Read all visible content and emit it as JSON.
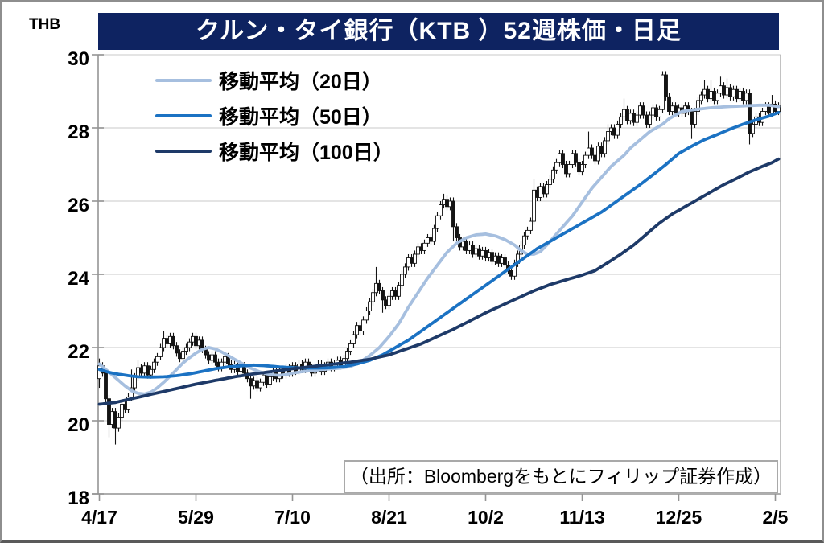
{
  "window": {
    "border_color": "#8e8e8e",
    "background": "#ffffff"
  },
  "header": {
    "title": "クルン・タイ銀行（KTB ）52週株価・日足",
    "background": "#0e2361",
    "text_color": "#ffffff"
  },
  "axes": {
    "unit_label": "THB",
    "y_ticks": [
      "30",
      "28",
      "26",
      "24",
      "22",
      "20",
      "18"
    ],
    "x_ticks": [
      "4/17",
      "5/29",
      "7/10",
      "8/21",
      "10/2",
      "11/13",
      "12/25",
      "2/5"
    ]
  },
  "legend": {
    "items": [
      {
        "label": "移動平均（20日）",
        "color": "#a6bfdf"
      },
      {
        "label": "移動平均（50日）",
        "color": "#1b72c3"
      },
      {
        "label": "移動平均（100日）",
        "color": "#1e3a68"
      }
    ]
  },
  "source_note": "（出所：Bloombergをもとにフィリップ証券作成）",
  "chart_data": {
    "type": "candlestick",
    "title": "クルン・タイ銀行（KTB ）52週株価・日足",
    "xlabel": "",
    "ylabel": "THB",
    "ylim": [
      18,
      30
    ],
    "y_step": 2,
    "grid": "horizontal",
    "legend_position": "top-left",
    "x_tick_labels": [
      "4/17",
      "5/29",
      "7/10",
      "8/21",
      "10/2",
      "11/13",
      "12/25",
      "2/5"
    ],
    "x_tick_days": [
      0,
      30,
      60,
      90,
      120,
      150,
      180,
      210
    ],
    "grid_color": "#dcdcdc",
    "axis_color": "#949494",
    "plot_edge_color": "#b3b3b3",
    "candle_up_color": "#ffffff",
    "candle_down_color": "#141414",
    "candle_outline": "#141414",
    "first_open": 21.15,
    "closes": [
      21.5,
      21.3,
      20.6,
      19.9,
      20.25,
      19.8,
      20.1,
      20.45,
      20.3,
      20.65,
      20.9,
      21.2,
      21.45,
      21.3,
      21.5,
      21.25,
      21.4,
      21.6,
      21.75,
      22.0,
      22.25,
      22.1,
      22.3,
      22.05,
      21.85,
      21.7,
      21.9,
      22.0,
      22.15,
      22.3,
      22.05,
      22.2,
      21.95,
      21.8,
      21.65,
      21.8,
      21.6,
      21.45,
      21.6,
      21.75,
      21.55,
      21.4,
      21.55,
      21.35,
      21.5,
      21.3,
      21.15,
      20.95,
      21.1,
      20.9,
      21.05,
      21.25,
      21.0,
      21.2,
      21.35,
      21.15,
      21.35,
      21.25,
      21.45,
      21.3,
      21.5,
      21.35,
      21.55,
      21.4,
      21.6,
      21.45,
      21.3,
      21.45,
      21.55,
      21.35,
      21.5,
      21.6,
      21.45,
      21.55,
      21.65,
      21.5,
      21.7,
      21.9,
      22.1,
      22.35,
      22.6,
      22.45,
      22.75,
      23.0,
      23.25,
      23.5,
      23.75,
      23.55,
      23.3,
      23.15,
      23.4,
      23.55,
      23.4,
      23.7,
      24.0,
      24.2,
      24.45,
      24.3,
      24.55,
      24.75,
      24.65,
      24.85,
      25.0,
      24.9,
      25.25,
      25.6,
      25.9,
      26.05,
      25.85,
      26.0,
      25.3,
      25.0,
      24.75,
      24.9,
      24.65,
      24.8,
      24.55,
      24.7,
      24.5,
      24.65,
      24.45,
      24.6,
      24.35,
      24.5,
      24.3,
      24.45,
      24.25,
      24.1,
      23.95,
      24.3,
      24.55,
      24.8,
      25.05,
      25.2,
      25.45,
      26.3,
      26.1,
      26.4,
      26.2,
      26.45,
      26.6,
      26.85,
      27.05,
      27.3,
      27.0,
      26.75,
      27.0,
      27.3,
      27.05,
      26.8,
      27.0,
      27.25,
      27.45,
      27.25,
      27.1,
      27.5,
      27.3,
      27.65,
      27.9,
      28.0,
      27.8,
      28.1,
      28.3,
      28.5,
      28.2,
      28.4,
      28.15,
      28.35,
      28.6,
      28.35,
      28.1,
      28.35,
      28.55,
      28.3,
      28.5,
      29.45,
      28.85,
      28.45,
      28.6,
      28.4,
      28.55,
      28.4,
      28.6,
      28.45,
      28.1,
      28.45,
      28.75,
      28.9,
      29.05,
      28.8,
      29.0,
      28.75,
      28.95,
      29.15,
      28.9,
      29.1,
      28.85,
      29.05,
      28.8,
      29.0,
      28.75,
      28.95,
      27.85,
      28.1,
      28.3,
      28.15,
      28.45,
      28.6,
      28.4,
      28.65,
      28.45,
      28.6
    ],
    "wick_overrides": {
      "0": {
        "l": 20.9,
        "h": 21.7
      },
      "2": {
        "l": 20.45
      },
      "3": {
        "l": 19.55
      },
      "5": {
        "l": 19.35
      },
      "10": {
        "h": 21.4
      },
      "12": {
        "h": 21.65
      },
      "20": {
        "h": 22.45
      },
      "29": {
        "h": 22.4
      },
      "47": {
        "l": 20.6
      },
      "86": {
        "h": 24.2
      },
      "88": {
        "l": 22.95
      },
      "107": {
        "h": 26.2
      },
      "110": {
        "l": 24.9
      },
      "128": {
        "l": 23.85
      },
      "135": {
        "h": 26.6
      },
      "152": {
        "h": 27.9
      },
      "158": {
        "h": 28.1
      },
      "163": {
        "h": 28.8
      },
      "175": {
        "h": 29.55
      },
      "184": {
        "l": 27.7
      },
      "188": {
        "h": 29.3
      },
      "190": {
        "h": 29.3
      },
      "193": {
        "h": 29.4
      },
      "195": {
        "h": 29.35
      },
      "202": {
        "l": 27.55
      },
      "209": {
        "h": 28.9
      }
    },
    "series": [
      {
        "name": "移動平均（20日）",
        "color": "#a6bfdf",
        "points": [
          [
            0,
            21.55
          ],
          [
            2,
            21.4
          ],
          [
            4,
            21.25
          ],
          [
            6,
            21.1
          ],
          [
            8,
            20.95
          ],
          [
            10,
            20.82
          ],
          [
            12,
            20.75
          ],
          [
            14,
            20.73
          ],
          [
            16,
            20.78
          ],
          [
            18,
            20.9
          ],
          [
            20,
            21.05
          ],
          [
            22,
            21.22
          ],
          [
            24,
            21.4
          ],
          [
            26,
            21.58
          ],
          [
            28,
            21.72
          ],
          [
            30,
            21.85
          ],
          [
            32,
            21.95
          ],
          [
            34,
            22.0
          ],
          [
            36,
            21.96
          ],
          [
            38,
            21.88
          ],
          [
            40,
            21.78
          ],
          [
            42,
            21.68
          ],
          [
            44,
            21.58
          ],
          [
            46,
            21.48
          ],
          [
            48,
            21.4
          ],
          [
            50,
            21.33
          ],
          [
            52,
            21.28
          ],
          [
            54,
            21.25
          ],
          [
            56,
            21.24
          ],
          [
            58,
            21.26
          ],
          [
            60,
            21.3
          ],
          [
            63,
            21.34
          ],
          [
            66,
            21.37
          ],
          [
            69,
            21.4
          ],
          [
            72,
            21.42
          ],
          [
            75,
            21.44
          ],
          [
            78,
            21.48
          ],
          [
            81,
            21.6
          ],
          [
            84,
            21.78
          ],
          [
            87,
            22.0
          ],
          [
            90,
            22.3
          ],
          [
            93,
            22.65
          ],
          [
            96,
            23.1
          ],
          [
            99,
            23.5
          ],
          [
            102,
            23.9
          ],
          [
            105,
            24.25
          ],
          [
            108,
            24.6
          ],
          [
            111,
            24.85
          ],
          [
            114,
            25.0
          ],
          [
            117,
            25.08
          ],
          [
            120,
            25.1
          ],
          [
            123,
            25.05
          ],
          [
            126,
            24.95
          ],
          [
            129,
            24.8
          ],
          [
            131,
            24.65
          ],
          [
            133,
            24.55
          ],
          [
            135,
            24.55
          ],
          [
            137,
            24.62
          ],
          [
            139,
            24.8
          ],
          [
            141,
            25.0
          ],
          [
            143,
            25.2
          ],
          [
            145,
            25.4
          ],
          [
            147,
            25.6
          ],
          [
            149,
            25.85
          ],
          [
            151,
            26.1
          ],
          [
            153,
            26.35
          ],
          [
            155,
            26.55
          ],
          [
            157,
            26.75
          ],
          [
            159,
            26.95
          ],
          [
            161,
            27.1
          ],
          [
            163,
            27.25
          ],
          [
            165,
            27.45
          ],
          [
            167,
            27.6
          ],
          [
            169,
            27.75
          ],
          [
            171,
            27.9
          ],
          [
            173,
            28.0
          ],
          [
            175,
            28.1
          ],
          [
            177,
            28.25
          ],
          [
            179,
            28.35
          ],
          [
            181,
            28.45
          ],
          [
            185,
            28.5
          ],
          [
            190,
            28.55
          ],
          [
            195,
            28.58
          ],
          [
            200,
            28.6
          ],
          [
            205,
            28.62
          ],
          [
            208,
            28.62
          ],
          [
            211,
            28.58
          ]
        ]
      },
      {
        "name": "移動平均（50日）",
        "color": "#1b72c3",
        "points": [
          [
            0,
            21.4
          ],
          [
            3,
            21.32
          ],
          [
            6,
            21.27
          ],
          [
            9,
            21.23
          ],
          [
            12,
            21.2
          ],
          [
            16,
            21.19
          ],
          [
            20,
            21.2
          ],
          [
            24,
            21.23
          ],
          [
            28,
            21.28
          ],
          [
            32,
            21.35
          ],
          [
            36,
            21.42
          ],
          [
            40,
            21.47
          ],
          [
            44,
            21.5
          ],
          [
            48,
            21.52
          ],
          [
            52,
            21.5
          ],
          [
            56,
            21.47
          ],
          [
            60,
            21.45
          ],
          [
            64,
            21.44
          ],
          [
            68,
            21.44
          ],
          [
            72,
            21.45
          ],
          [
            76,
            21.48
          ],
          [
            80,
            21.55
          ],
          [
            84,
            21.65
          ],
          [
            88,
            21.8
          ],
          [
            92,
            22.0
          ],
          [
            96,
            22.2
          ],
          [
            100,
            22.45
          ],
          [
            104,
            22.7
          ],
          [
            108,
            22.95
          ],
          [
            112,
            23.2
          ],
          [
            116,
            23.45
          ],
          [
            120,
            23.7
          ],
          [
            124,
            23.95
          ],
          [
            128,
            24.2
          ],
          [
            132,
            24.45
          ],
          [
            136,
            24.7
          ],
          [
            140,
            24.9
          ],
          [
            144,
            25.1
          ],
          [
            148,
            25.3
          ],
          [
            152,
            25.5
          ],
          [
            156,
            25.7
          ],
          [
            160,
            25.95
          ],
          [
            164,
            26.2
          ],
          [
            168,
            26.45
          ],
          [
            172,
            26.72
          ],
          [
            176,
            27.0
          ],
          [
            180,
            27.3
          ],
          [
            184,
            27.5
          ],
          [
            188,
            27.68
          ],
          [
            192,
            27.82
          ],
          [
            196,
            27.97
          ],
          [
            200,
            28.1
          ],
          [
            204,
            28.22
          ],
          [
            208,
            28.32
          ],
          [
            211,
            28.42
          ]
        ]
      },
      {
        "name": "移動平均（100日）",
        "color": "#1e3a68",
        "points": [
          [
            0,
            20.45
          ],
          [
            5,
            20.5
          ],
          [
            10,
            20.6
          ],
          [
            15,
            20.7
          ],
          [
            20,
            20.8
          ],
          [
            25,
            20.9
          ],
          [
            30,
            21.0
          ],
          [
            36,
            21.1
          ],
          [
            42,
            21.2
          ],
          [
            48,
            21.28
          ],
          [
            54,
            21.35
          ],
          [
            60,
            21.42
          ],
          [
            66,
            21.48
          ],
          [
            72,
            21.54
          ],
          [
            78,
            21.6
          ],
          [
            84,
            21.68
          ],
          [
            90,
            21.8
          ],
          [
            95,
            21.95
          ],
          [
            100,
            22.1
          ],
          [
            105,
            22.3
          ],
          [
            110,
            22.5
          ],
          [
            115,
            22.72
          ],
          [
            120,
            22.95
          ],
          [
            125,
            23.15
          ],
          [
            130,
            23.35
          ],
          [
            135,
            23.55
          ],
          [
            140,
            23.72
          ],
          [
            145,
            23.85
          ],
          [
            150,
            23.98
          ],
          [
            154,
            24.1
          ],
          [
            158,
            24.32
          ],
          [
            162,
            24.55
          ],
          [
            166,
            24.8
          ],
          [
            170,
            25.1
          ],
          [
            174,
            25.4
          ],
          [
            178,
            25.65
          ],
          [
            182,
            25.85
          ],
          [
            186,
            26.05
          ],
          [
            190,
            26.25
          ],
          [
            194,
            26.45
          ],
          [
            198,
            26.62
          ],
          [
            202,
            26.8
          ],
          [
            206,
            26.95
          ],
          [
            209,
            27.05
          ],
          [
            211,
            27.15
          ]
        ]
      }
    ]
  }
}
